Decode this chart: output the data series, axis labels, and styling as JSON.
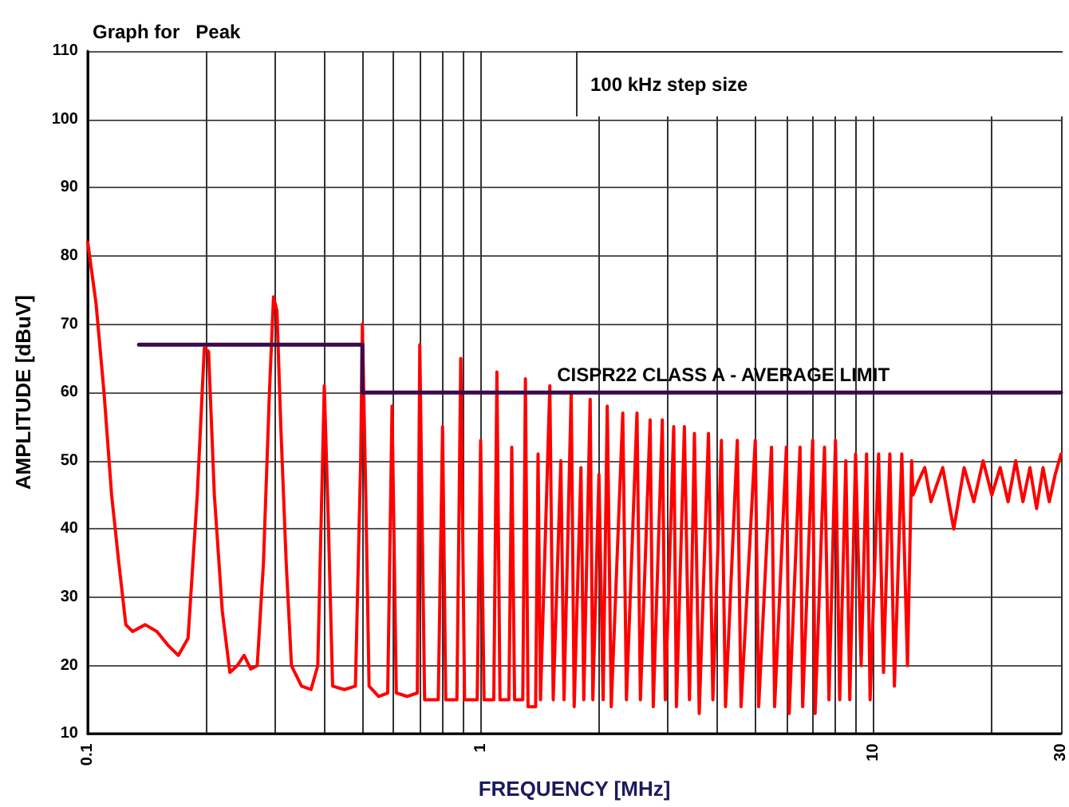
{
  "chart_data": {
    "type": "line",
    "title": "Graph for   Peak",
    "xlabel": "FREQUENCY [MHz]",
    "ylabel": "AMPLITUDE [dBuV]",
    "annotations": [
      "100 kHz step size"
    ],
    "log": "x",
    "grid": true,
    "marker": "none",
    "line_style": "solid",
    "xlim": [
      0.1,
      30
    ],
    "ylim": [
      10,
      110
    ],
    "xticks": [
      0.1,
      {
        "value": 0.2,
        "label": null
      },
      {
        "value": 0.3,
        "label": null
      },
      {
        "value": 0.4,
        "label": null
      },
      {
        "value": 0.5,
        "label": null
      },
      {
        "value": 0.6,
        "label": null
      },
      {
        "value": 0.7,
        "label": null
      },
      {
        "value": 0.8,
        "label": null
      },
      {
        "value": 0.9,
        "label": null
      },
      1,
      {
        "value": 2,
        "label": null
      },
      {
        "value": 3,
        "label": null
      },
      {
        "value": 4,
        "label": null
      },
      {
        "value": 5,
        "label": null
      },
      {
        "value": 6,
        "label": null
      },
      {
        "value": 7,
        "label": null
      },
      {
        "value": 8,
        "label": null
      },
      {
        "value": 9,
        "label": null
      },
      10,
      {
        "value": 20,
        "label": null
      },
      30
    ],
    "yticks": [
      10,
      20,
      30,
      40,
      50,
      60,
      70,
      80,
      90,
      100,
      110
    ],
    "series": [
      {
        "color": "#ff0000",
        "x": [
          0.1,
          0.105,
          0.11,
          0.115,
          0.12,
          0.125,
          0.13,
          0.14,
          0.15,
          0.16,
          0.17,
          0.18,
          0.19,
          0.198,
          0.203,
          0.21,
          0.22,
          0.23,
          0.24,
          0.25,
          0.26,
          0.27,
          0.28,
          0.29,
          0.297,
          0.303,
          0.31,
          0.32,
          0.33,
          0.35,
          0.37,
          0.385,
          0.4,
          0.41,
          0.42,
          0.45,
          0.48,
          0.495,
          0.5,
          0.51,
          0.52,
          0.55,
          0.58,
          0.595,
          0.61,
          0.65,
          0.69,
          0.7,
          0.72,
          0.78,
          0.8,
          0.815,
          0.87,
          0.89,
          0.91,
          0.98,
          1.0,
          1.02,
          1.08,
          1.1,
          1.12,
          1.18,
          1.2,
          1.22,
          1.28,
          1.3,
          1.32,
          1.38,
          1.4,
          1.42,
          1.5,
          1.53,
          1.6,
          1.63,
          1.7,
          1.73,
          1.8,
          1.83,
          1.9,
          1.93,
          2.0,
          2.05,
          2.1,
          2.15,
          2.3,
          2.35,
          2.5,
          2.55,
          2.7,
          2.75,
          2.9,
          2.95,
          3.1,
          3.15,
          3.3,
          3.4,
          3.5,
          3.6,
          3.8,
          3.9,
          4.1,
          4.2,
          4.5,
          4.6,
          5,
          5.1,
          5.5,
          5.6,
          6,
          6.1,
          6.5,
          6.6,
          7,
          7.1,
          7.5,
          7.7,
          8,
          8.2,
          8.5,
          8.7,
          9,
          9.3,
          9.6,
          9.8,
          10.3,
          10.6,
          11,
          11.3,
          11.8,
          12.2,
          12.5,
          12.6,
          13,
          13.5,
          14,
          15,
          16,
          17,
          18,
          19,
          20,
          21,
          22,
          23,
          24,
          25,
          26,
          27,
          28,
          29,
          30
        ],
        "values": [
          82,
          73,
          60,
          45,
          35,
          26,
          25,
          26,
          25,
          23,
          21.5,
          24,
          45,
          66.5,
          66,
          45,
          28,
          19,
          20,
          21.5,
          19.5,
          20,
          35,
          60,
          74,
          72,
          55,
          35,
          20,
          17,
          16.5,
          20,
          61,
          40,
          17,
          16.5,
          17,
          50,
          70,
          45,
          17,
          15.5,
          16,
          58,
          16,
          15.5,
          16,
          67,
          15,
          15,
          55,
          15,
          15,
          65,
          15,
          15,
          53,
          15,
          15,
          63,
          15,
          15,
          52,
          15,
          15,
          62,
          14,
          14,
          51,
          15,
          61,
          15,
          50,
          15,
          60,
          14,
          49,
          15,
          59,
          15,
          48,
          15,
          58,
          14,
          57,
          15,
          57,
          15,
          56,
          14,
          56,
          15,
          55,
          14,
          55,
          15,
          54,
          13,
          54,
          15,
          53,
          14,
          53,
          14,
          53,
          14,
          52,
          14,
          52,
          13,
          52,
          14,
          53,
          13,
          52,
          15,
          53,
          15,
          50,
          15,
          51,
          20,
          51,
          15,
          51,
          19,
          51,
          17,
          51,
          20,
          50,
          45,
          47,
          49,
          44,
          49,
          40,
          49,
          44,
          50,
          45,
          49,
          44,
          50,
          44,
          49,
          43,
          49,
          44,
          48,
          51
        ]
      },
      {
        "name": "CISPR22 CLASS A - AVERAGE LIMIT",
        "color": "#3c0a4a",
        "x": [
          0.135,
          0.5,
          0.5,
          30
        ],
        "values": [
          67,
          67,
          60,
          60
        ]
      }
    ]
  }
}
